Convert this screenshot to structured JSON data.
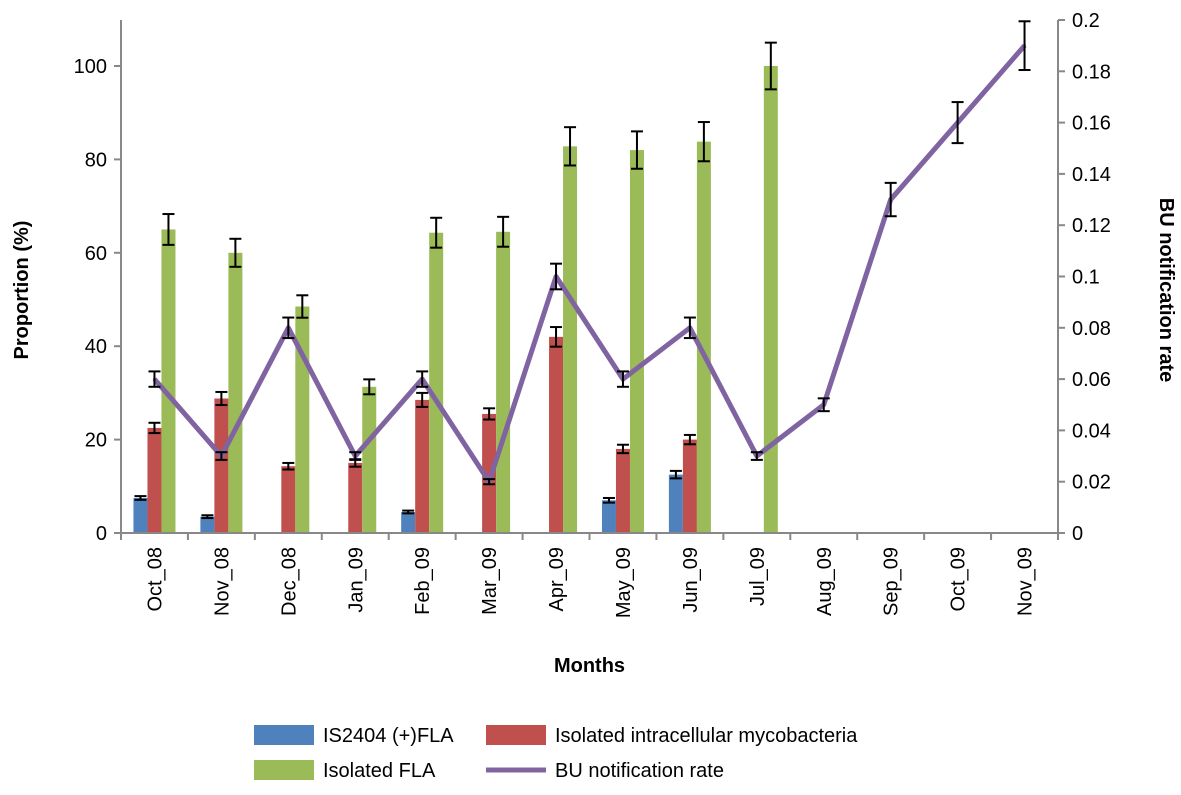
{
  "chart_data": {
    "type": "bar",
    "categories": [
      "Oct_08",
      "Nov_08",
      "Dec_08",
      "Jan_09",
      "Feb_09",
      "Mar_09",
      "Apr_09",
      "May_09",
      "Jun_09",
      "Jul_09",
      "Aug_09",
      "Sep_09",
      "Oct_09",
      "Nov_09"
    ],
    "xlabel": "Months",
    "ylabel": "Proportion (%)",
    "y2label": "BU notification rate",
    "ylim": [
      0,
      110
    ],
    "y2lim": [
      0,
      0.2
    ],
    "yticks": [
      "0",
      "20",
      "40",
      "60",
      "80",
      "100"
    ],
    "y2ticks": [
      "0",
      "0.02",
      "0.04",
      "0.06",
      "0.08",
      "0.1",
      "0.12",
      "0.14",
      "0.16",
      "0.18",
      "0.2"
    ],
    "grid": false,
    "legend_position": "bottom",
    "series": [
      {
        "name": "IS2404 (+)FLA",
        "type": "bar",
        "axis": "left",
        "color": "#4f81bd",
        "values": [
          7.5,
          3.5,
          0,
          0,
          4.5,
          0,
          0,
          7,
          12.5,
          0,
          null,
          null,
          null,
          null
        ],
        "errors": [
          0.4,
          0.3,
          0,
          0,
          0.3,
          0,
          0,
          0.5,
          0.8,
          0,
          null,
          null,
          null,
          null
        ]
      },
      {
        "name": "Isolated intracellular mycobacteria",
        "type": "bar",
        "axis": "left",
        "color": "#c0504d",
        "values": [
          22.5,
          28.8,
          14.3,
          15,
          28.5,
          25.5,
          42,
          18,
          20,
          0,
          null,
          null,
          null,
          null
        ],
        "errors": [
          1.1,
          1.4,
          0.7,
          0.8,
          1.5,
          1.2,
          2.1,
          0.9,
          1.0,
          0,
          null,
          null,
          null,
          null
        ]
      },
      {
        "name": "Isolated FLA",
        "type": "bar",
        "axis": "left",
        "color": "#9bbb59",
        "values": [
          65,
          60,
          48.5,
          31.3,
          64.3,
          64.5,
          82.8,
          82,
          83.8,
          100,
          null,
          null,
          null,
          null
        ],
        "errors": [
          3.3,
          3.0,
          2.4,
          1.6,
          3.2,
          3.2,
          4.1,
          4.0,
          4.2,
          5.0,
          null,
          null,
          null,
          null
        ]
      },
      {
        "name": "BU notification rate",
        "type": "line",
        "axis": "right",
        "color": "#8064a2",
        "values": [
          0.06,
          0.03,
          0.08,
          0.03,
          0.06,
          0.02,
          0.1,
          0.06,
          0.08,
          0.03,
          0.05,
          0.13,
          0.16,
          0.19
        ],
        "errors": [
          0.003,
          0.0015,
          0.004,
          0.0015,
          0.003,
          0.001,
          0.005,
          0.003,
          0.004,
          0.0015,
          0.0025,
          0.0065,
          0.008,
          0.0095
        ]
      }
    ]
  }
}
